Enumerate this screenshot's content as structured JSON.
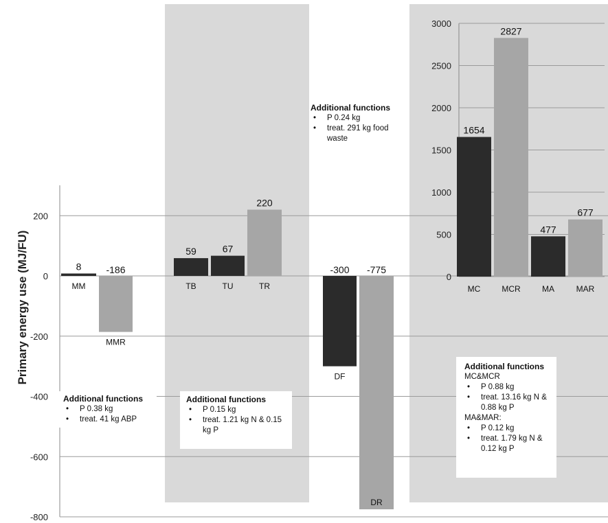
{
  "chart_data": [
    {
      "type": "bar",
      "ylabel": "Primary energy use (MJ/FU)",
      "ylim": [
        -800,
        300
      ],
      "yticks": [
        -800,
        -600,
        -400,
        -200,
        0,
        200
      ],
      "grid": true,
      "groups": [
        {
          "name": "M",
          "bars": [
            {
              "category": "MM",
              "value": 8,
              "color": "#2b2b2b",
              "label": "8"
            },
            {
              "category": "MMR",
              "value": -186,
              "color": "#a6a6a6",
              "label": "-186"
            }
          ]
        },
        {
          "name": "T",
          "bars": [
            {
              "category": "TB",
              "value": 59,
              "color": "#2b2b2b",
              "label": "59"
            },
            {
              "category": "TU",
              "value": 67,
              "color": "#2b2b2b",
              "label": "67"
            },
            {
              "category": "TR",
              "value": 220,
              "color": "#a6a6a6",
              "label": "220"
            }
          ]
        },
        {
          "name": "D",
          "bars": [
            {
              "category": "DF",
              "value": -300,
              "color": "#2b2b2b",
              "label": "-300"
            },
            {
              "category": "DR",
              "value": -775,
              "color": "#a6a6a6",
              "label": "-775"
            }
          ]
        }
      ]
    },
    {
      "type": "bar",
      "ylim": [
        0,
        3000
      ],
      "yticks": [
        0,
        500,
        1000,
        1500,
        2000,
        2500,
        3000
      ],
      "grid": true,
      "bars": [
        {
          "category": "MC",
          "value": 1654,
          "color": "#2b2b2b",
          "label": "1654"
        },
        {
          "category": "MCR",
          "value": 2827,
          "color": "#a6a6a6",
          "label": "2827"
        },
        {
          "category": "MA",
          "value": 477,
          "color": "#2b2b2b",
          "label": "477"
        },
        {
          "category": "MAR",
          "value": 677,
          "color": "#a6a6a6",
          "label": "677"
        }
      ]
    }
  ],
  "annotations": {
    "m": {
      "title": "Additional functions",
      "items": [
        "P 0.38 kg",
        "treat. 41 kg ABP"
      ]
    },
    "t": {
      "title": "Additional functions",
      "items": [
        "P 0.15 kg",
        "treat. 1.21 kg N & 0.15 kg P"
      ]
    },
    "d": {
      "title": "Additional functions",
      "items": [
        "P 0.24 kg",
        "treat. 291 kg food waste"
      ]
    },
    "mc": {
      "title": "Additional functions",
      "sub1": "MC&MCR",
      "items1": [
        "P 0.88 kg",
        "treat. 13.16 kg N & 0.88 kg P"
      ],
      "sub2": "MA&MAR:",
      "items2": [
        "P 0.12 kg",
        "treat. 1.79 kg N & 0.12 kg P"
      ]
    }
  }
}
